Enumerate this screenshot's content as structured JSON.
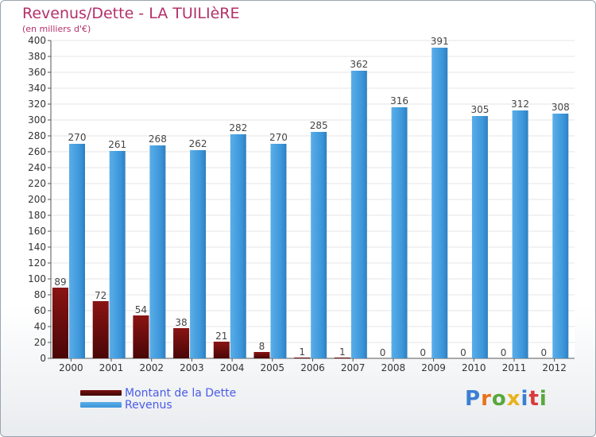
{
  "chart_data": {
    "type": "bar",
    "title": "Revenus/Dette - LA TUILIèRE",
    "subtitle": "(en milliers d'€)",
    "categories": [
      "2000",
      "2001",
      "2002",
      "2003",
      "2004",
      "2005",
      "2006",
      "2007",
      "2008",
      "2009",
      "2010",
      "2011",
      "2012"
    ],
    "series": [
      {
        "name": "Montant de la Dette",
        "color": "#7a1010",
        "values": [
          89,
          72,
          54,
          38,
          21,
          8,
          1,
          1,
          0,
          0,
          0,
          0,
          0
        ]
      },
      {
        "name": "Revenus",
        "color": "#3b95d9",
        "values": [
          270,
          261,
          268,
          262,
          282,
          270,
          285,
          362,
          316,
          391,
          305,
          312,
          308
        ]
      }
    ],
    "ylim": [
      0,
      400
    ],
    "yticks": [
      0,
      20,
      40,
      60,
      80,
      100,
      120,
      140,
      160,
      180,
      200,
      220,
      240,
      260,
      280,
      300,
      320,
      340,
      360,
      380,
      400
    ],
    "grid": true,
    "legend_position": "bottom-left"
  },
  "logo": {
    "letters": [
      "P",
      "r",
      "o",
      "x",
      "i",
      "t",
      "i"
    ],
    "colors": [
      "#3b7fd1",
      "#e8731a",
      "#58a83a",
      "#e8b21a",
      "#3b7fd1",
      "#d93a3a",
      "#58a83a"
    ]
  }
}
